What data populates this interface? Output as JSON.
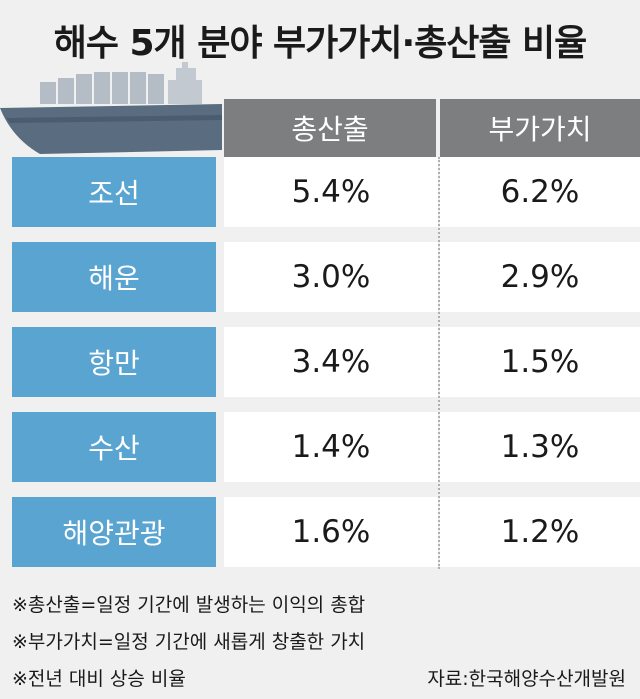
{
  "title": "해수 5개 분야 부가가치·총산출 비율",
  "header": {
    "col1": "총산출",
    "col2": "부가가치"
  },
  "rows": [
    {
      "label": "조선",
      "output": "5.4%",
      "value_added": "6.2%"
    },
    {
      "label": "해운",
      "output": "3.0%",
      "value_added": "2.9%"
    },
    {
      "label": "항만",
      "output": "3.4%",
      "value_added": "1.5%"
    },
    {
      "label": "수산",
      "output": "1.4%",
      "value_added": "1.3%"
    },
    {
      "label": "해양관광",
      "output": "1.6%",
      "value_added": "1.2%"
    }
  ],
  "notes": [
    "※총산출=일정 기간에 발생하는 이익의 총합",
    "※부가가치=일정 기간에 새롭게 창출한 가치",
    "※전년 대비 상승 비율"
  ],
  "source": "자료:한국해양수산개발원",
  "colors": {
    "header_bg": "#7d7e80",
    "label_bg": "#5aa4d1",
    "ship": "#5a6d80"
  }
}
